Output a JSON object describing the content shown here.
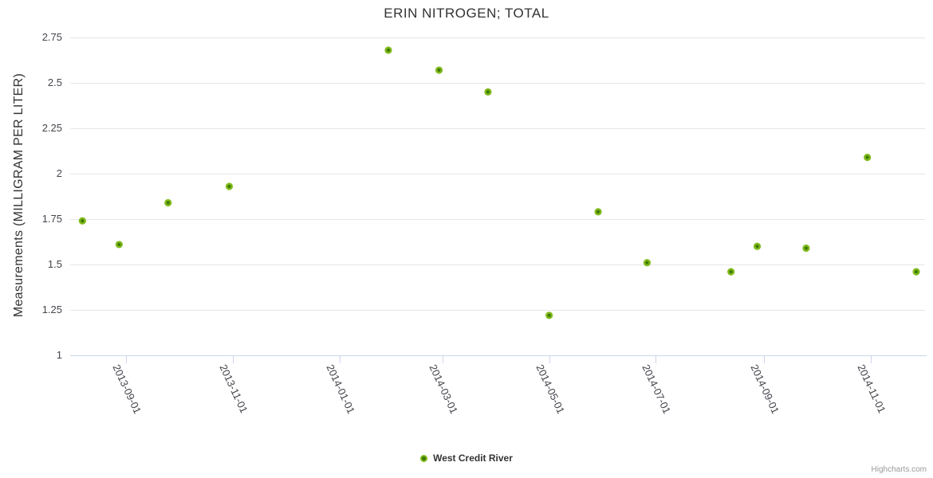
{
  "credits": "Highcharts.com",
  "colors": {
    "marker_outer": "#80ba1d",
    "marker_inner": "#3e7a04",
    "grid": "#e6e6e6",
    "axis": "#ccd6eb",
    "title_text": "#333333",
    "label_text": "#45454d",
    "credits_text": "#999999"
  },
  "chart_data": {
    "type": "scatter",
    "title": "ERIN NITROGEN; TOTAL",
    "xlabel": "",
    "ylabel": "Measurements (MILLIGRAM PER LITER)",
    "legend_position": "bottom-center",
    "grid": "horizontal-only",
    "x_range": [
      "2013-07-31",
      "2014-12-02"
    ],
    "y_range": [
      1,
      2.75
    ],
    "y_ticks": [
      1,
      1.25,
      1.5,
      1.75,
      2,
      2.25,
      2.5,
      2.75
    ],
    "x_ticks": [
      "2013-09-01",
      "2013-11-01",
      "2014-01-01",
      "2014-03-01",
      "2014-05-01",
      "2014-07-01",
      "2014-09-01",
      "2014-11-01"
    ],
    "series": [
      {
        "name": "West Credit River",
        "points": [
          {
            "x": "2013-08-07",
            "y": 1.74
          },
          {
            "x": "2013-08-28",
            "y": 1.61
          },
          {
            "x": "2013-09-25",
            "y": 1.84
          },
          {
            "x": "2013-10-30",
            "y": 1.93
          },
          {
            "x": "2014-01-29",
            "y": 2.68
          },
          {
            "x": "2014-02-27",
            "y": 2.57
          },
          {
            "x": "2014-03-27",
            "y": 2.45
          },
          {
            "x": "2014-05-01",
            "y": 1.22
          },
          {
            "x": "2014-05-29",
            "y": 1.79
          },
          {
            "x": "2014-06-26",
            "y": 1.51
          },
          {
            "x": "2014-08-13",
            "y": 1.46
          },
          {
            "x": "2014-08-28",
            "y": 1.6
          },
          {
            "x": "2014-09-25",
            "y": 1.59
          },
          {
            "x": "2014-10-30",
            "y": 2.09
          },
          {
            "x": "2014-11-27",
            "y": 1.46
          }
        ]
      }
    ]
  }
}
